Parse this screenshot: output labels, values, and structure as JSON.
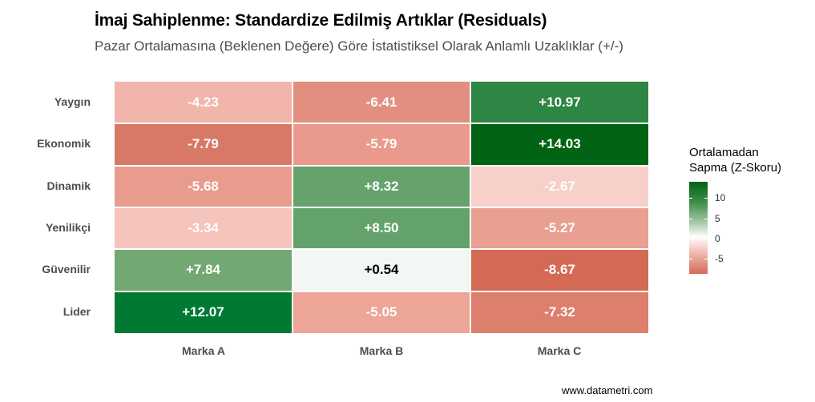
{
  "chart_data": {
    "type": "heatmap",
    "title": "İmaj Sahiplenme: Standardize Edilmiş Artıklar (Residuals)",
    "subtitle": "Pazar Ortalamasına (Beklenen Değere) Göre İstatistiksel Olarak Anlamlı Uzaklıklar (+/-)",
    "xlabel": "",
    "ylabel": "",
    "x_categories": [
      "Marka A",
      "Marka B",
      "Marka C"
    ],
    "y_categories": [
      "Yaygın",
      "Ekonomik",
      "Dinamik",
      "Yenilikçi",
      "Güvenilir",
      "Lider"
    ],
    "values": [
      [
        -4.23,
        -6.41,
        10.97
      ],
      [
        -7.79,
        -5.79,
        14.03
      ],
      [
        -5.68,
        8.32,
        -2.67
      ],
      [
        -3.34,
        8.5,
        -5.27
      ],
      [
        7.84,
        0.54,
        -8.67
      ],
      [
        12.07,
        -5.05,
        -7.32
      ]
    ],
    "labels": [
      [
        "-4.23",
        "-6.41",
        "+10.97"
      ],
      [
        "-7.79",
        "-5.79",
        "+14.03"
      ],
      [
        "-5.68",
        "+8.32",
        "-2.67"
      ],
      [
        "-3.34",
        "+8.50",
        "-5.27"
      ],
      [
        "+7.84",
        "+0.54",
        "-8.67"
      ],
      [
        "+12.07",
        "-5.05",
        "-7.32"
      ]
    ],
    "colors": [
      [
        "#f2b5ab",
        "#e28f80",
        "#2e8644"
      ],
      [
        "#d87866",
        "#e99a8c",
        "#006414"
      ],
      [
        "#e99b8d",
        "#66a36c",
        "#f7d0ca"
      ],
      [
        "#f5c4bc",
        "#64a26b",
        "#e99f92"
      ],
      [
        "#72a873",
        "#f3f7f3",
        "#d46a55"
      ],
      [
        "#007a33",
        "#eca597",
        "#dc7f6d"
      ]
    ],
    "text_colors": [
      [
        "#ffffff",
        "#ffffff",
        "#ffffff"
      ],
      [
        "#ffffff",
        "#ffffff",
        "#ffffff"
      ],
      [
        "#ffffff",
        "#ffffff",
        "#ffffff"
      ],
      [
        "#ffffff",
        "#ffffff",
        "#ffffff"
      ],
      [
        "#ffffff",
        "#000000",
        "#ffffff"
      ],
      [
        "#ffffff",
        "#ffffff",
        "#ffffff"
      ]
    ],
    "legend": {
      "title_line1": "Ortalamadan",
      "title_line2": "Sapma (Z-Skoru)",
      "ticks": [
        "10",
        "5",
        "0",
        "-5"
      ],
      "tick_values": [
        10,
        5,
        0,
        -5
      ],
      "range": [
        -8.67,
        14.03
      ],
      "low_color": "#d46a55",
      "mid_color": "#ffffff",
      "high_color": "#006414",
      "position": "right"
    },
    "grid": false
  },
  "footer": {
    "source": "www.datametri.com"
  }
}
